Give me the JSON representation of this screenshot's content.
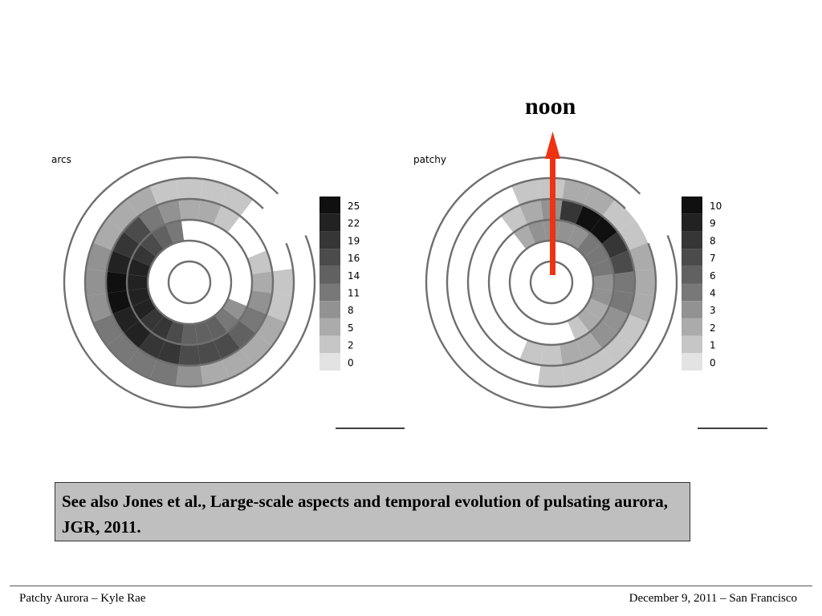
{
  "annotation": {
    "text": "noon",
    "arrow_color": "#ee3311"
  },
  "chart_data": [
    {
      "type": "heatmap",
      "title": "arcs",
      "projection": "polar-dial",
      "colorbar": {
        "ticks": [
          "25",
          "22",
          "19",
          "16",
          "14",
          "11",
          "8",
          "5",
          "2",
          "0"
        ]
      },
      "series": [
        {
          "ring": 2,
          "cells": [
            [
              120,
              8
            ],
            [
              135,
              11
            ],
            [
              150,
              14
            ],
            [
              165,
              14
            ],
            [
              180,
              14
            ],
            [
              195,
              16
            ],
            [
              210,
              19
            ],
            [
              225,
              19
            ],
            [
              240,
              22
            ],
            [
              255,
              22
            ],
            [
              270,
              22
            ],
            [
              285,
              22
            ],
            [
              300,
              19
            ],
            [
              315,
              16
            ],
            [
              330,
              14
            ],
            [
              345,
              11
            ]
          ]
        },
        {
          "ring": 3,
          "cells": [
            [
              75,
              2
            ],
            [
              90,
              5
            ],
            [
              105,
              8
            ],
            [
              120,
              11
            ],
            [
              135,
              14
            ],
            [
              150,
              16
            ],
            [
              165,
              16
            ],
            [
              180,
              16
            ],
            [
              195,
              19
            ],
            [
              210,
              19
            ],
            [
              225,
              22
            ],
            [
              240,
              22
            ],
            [
              255,
              25
            ],
            [
              270,
              25
            ],
            [
              285,
              22
            ],
            [
              300,
              19
            ],
            [
              315,
              16
            ],
            [
              330,
              11
            ],
            [
              345,
              8
            ],
            [
              360,
              5
            ],
            [
              15,
              5
            ],
            [
              30,
              2
            ]
          ]
        },
        {
          "ring": 4,
          "cells": [
            [
              90,
              2
            ],
            [
              105,
              2
            ],
            [
              120,
              5
            ],
            [
              135,
              5
            ],
            [
              150,
              5
            ],
            [
              165,
              5
            ],
            [
              180,
              8
            ],
            [
              195,
              11
            ],
            [
              210,
              11
            ],
            [
              225,
              11
            ],
            [
              240,
              11
            ],
            [
              255,
              8
            ],
            [
              270,
              8
            ],
            [
              285,
              8
            ],
            [
              300,
              5
            ],
            [
              315,
              5
            ],
            [
              330,
              5
            ],
            [
              345,
              2
            ],
            [
              360,
              2
            ],
            [
              15,
              2
            ],
            [
              30,
              2
            ]
          ]
        }
      ]
    },
    {
      "type": "heatmap",
      "title": "patchy",
      "projection": "polar-dial",
      "colorbar": {
        "ticks": [
          "10",
          "9",
          "8",
          "7",
          "6",
          "4",
          "3",
          "2",
          "1",
          "0"
        ]
      },
      "series": [
        {
          "ring": 2,
          "cells": [
            [
              330,
              2
            ],
            [
              345,
              3
            ],
            [
              360,
              3
            ],
            [
              15,
              3
            ],
            [
              30,
              3
            ],
            [
              45,
              4
            ],
            [
              60,
              4
            ],
            [
              75,
              4
            ],
            [
              90,
              3
            ],
            [
              105,
              3
            ],
            [
              120,
              2
            ],
            [
              135,
              2
            ],
            [
              150,
              1
            ]
          ]
        },
        {
          "ring": 3,
          "cells": [
            [
              330,
              1
            ],
            [
              345,
              2
            ],
            [
              360,
              3
            ],
            [
              15,
              8
            ],
            [
              30,
              10
            ],
            [
              45,
              10
            ],
            [
              60,
              8
            ],
            [
              75,
              7
            ],
            [
              90,
              4
            ],
            [
              105,
              4
            ],
            [
              120,
              3
            ],
            [
              135,
              3
            ],
            [
              150,
              2
            ],
            [
              165,
              2
            ],
            [
              180,
              1
            ],
            [
              195,
              1
            ]
          ]
        },
        {
          "ring": 4,
          "cells": [
            [
              345,
              1
            ],
            [
              360,
              1
            ],
            [
              15,
              2
            ],
            [
              30,
              2
            ],
            [
              45,
              1
            ],
            [
              60,
              1
            ],
            [
              75,
              2
            ],
            [
              90,
              2
            ],
            [
              105,
              2
            ],
            [
              120,
              1
            ],
            [
              135,
              1
            ],
            [
              150,
              1
            ],
            [
              165,
              1
            ],
            [
              180,
              1
            ]
          ]
        }
      ]
    }
  ],
  "note": {
    "text": "See also Jones et al., Large-scale aspects and temporal evolution of pulsating aurora, JGR, 2011."
  },
  "footer": {
    "left": "Patchy Aurora – Kyle Rae",
    "right": "December 9, 2011 – San Francisco"
  },
  "colors": {
    "ring_stroke": "#6f6f6f",
    "text": "#000000",
    "note_bg": "#bfbfbf"
  }
}
